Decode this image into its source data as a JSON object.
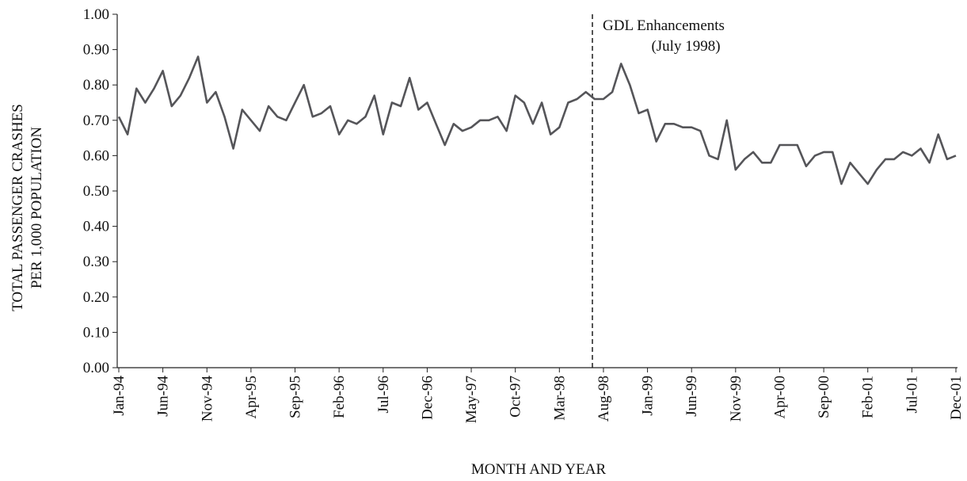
{
  "chart_data": {
    "type": "line",
    "y_label": [
      "TOTAL PASSENGER CRASHES",
      "PER 1,000 POPULATION"
    ],
    "x_label": "MONTH AND YEAR",
    "annotation": [
      "GDL Enhancements",
      "(July 1998)"
    ],
    "categories": [
      "Jan-94",
      null,
      null,
      null,
      null,
      "Jun-94",
      null,
      null,
      null,
      null,
      "Nov-94",
      null,
      null,
      null,
      null,
      "Apr-95",
      null,
      null,
      null,
      null,
      "Sep-95",
      null,
      null,
      null,
      null,
      "Feb-96",
      null,
      null,
      null,
      null,
      "Jul-96",
      null,
      null,
      null,
      null,
      "Dec-96",
      null,
      null,
      null,
      null,
      "May-97",
      null,
      null,
      null,
      null,
      "Oct-97",
      null,
      null,
      null,
      null,
      "Mar-98",
      null,
      null,
      null,
      null,
      "Aug-98",
      null,
      null,
      null,
      null,
      "Jan-99",
      null,
      null,
      null,
      null,
      "Jun-99",
      null,
      null,
      null,
      null,
      "Nov-99",
      null,
      null,
      null,
      null,
      "Apr-00",
      null,
      null,
      null,
      null,
      "Sep-00",
      null,
      null,
      null,
      null,
      "Feb-01",
      null,
      null,
      null,
      null,
      "Jul-01",
      null,
      null,
      null,
      null,
      "Dec-01"
    ],
    "series": [
      {
        "name": "Total passenger crashes",
        "color": "#555559",
        "values": [
          0.71,
          0.66,
          0.79,
          0.75,
          0.79,
          0.84,
          0.74,
          0.77,
          0.82,
          0.88,
          0.75,
          0.78,
          0.71,
          0.62,
          0.73,
          0.7,
          0.67,
          0.74,
          0.71,
          0.7,
          0.75,
          0.8,
          0.71,
          0.72,
          0.74,
          0.66,
          0.7,
          0.69,
          0.71,
          0.77,
          0.66,
          0.75,
          0.74,
          0.82,
          0.73,
          0.75,
          0.69,
          0.63,
          0.69,
          0.67,
          0.68,
          0.7,
          0.7,
          0.71,
          0.67,
          0.77,
          0.75,
          0.69,
          0.75,
          0.66,
          0.68,
          0.75,
          0.76,
          0.78,
          0.76,
          0.76,
          0.78,
          0.86,
          0.8,
          0.72,
          0.73,
          0.64,
          0.69,
          0.69,
          0.68,
          0.68,
          0.67,
          0.6,
          0.59,
          0.7,
          0.56,
          0.59,
          0.61,
          0.58,
          0.58,
          0.63,
          0.63,
          0.63,
          0.57,
          0.6,
          0.61,
          0.61,
          0.52,
          0.58,
          0.55,
          0.52,
          0.56,
          0.59,
          0.59,
          0.61,
          0.6,
          0.62,
          0.58,
          0.66,
          0.59,
          0.6
        ]
      }
    ],
    "ylim": [
      0,
      1
    ],
    "yticks": [
      {
        "value": 0,
        "label": "0.00"
      },
      {
        "value": 0.1,
        "label": "0.10"
      },
      {
        "value": 0.2,
        "label": "0.20"
      },
      {
        "value": 0.3,
        "label": "0.30"
      },
      {
        "value": 0.4,
        "label": "0.40"
      },
      {
        "value": 0.5,
        "label": "0.50"
      },
      {
        "value": 0.6,
        "label": "0.60"
      },
      {
        "value": 0.7,
        "label": "0.70"
      },
      {
        "value": 0.8,
        "label": "0.80"
      },
      {
        "value": 0.9,
        "label": "0.90"
      },
      {
        "value": 1,
        "label": "1.00"
      }
    ],
    "grid": false
  }
}
